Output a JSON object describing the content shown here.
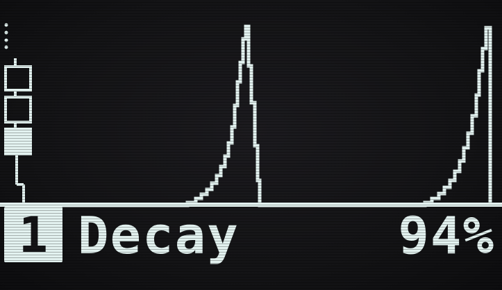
{
  "display": {
    "track_number": "1",
    "parameter_name": "Decay",
    "parameter_value": "94%",
    "accent_color": "#e3f2f0",
    "background_color": "#141416"
  },
  "step_sequence": [
    {
      "state": "empty"
    },
    {
      "state": "empty"
    },
    {
      "state": "filled"
    }
  ],
  "envelope": {
    "shape": "exponential-decay",
    "decay_percent": 94,
    "repeats": 2
  }
}
